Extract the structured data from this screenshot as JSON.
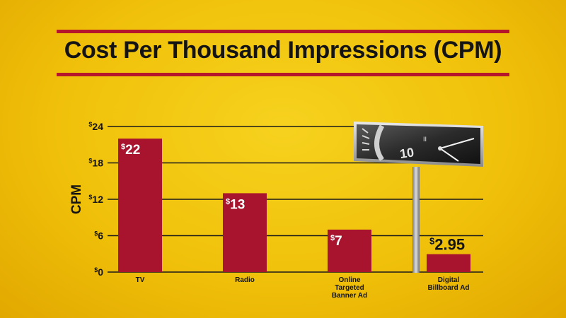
{
  "chart_data": {
    "type": "bar",
    "title": "Cost Per Thousand Impressions (CPM)",
    "ylabel": "CPM",
    "xlabel": "",
    "categories": [
      "TV",
      "Radio",
      "Online Targeted Banner Ad",
      "Digital Billboard Ad"
    ],
    "category_lines": [
      [
        "TV"
      ],
      [
        "Radio"
      ],
      [
        "Online",
        "Targeted",
        "Banner Ad"
      ],
      [
        "Digital",
        "Billboard Ad"
      ]
    ],
    "values": [
      22,
      13,
      7,
      2.95
    ],
    "value_labels": [
      "22",
      "13",
      "7",
      "2.95"
    ],
    "currency_symbol": "$",
    "yticks": [
      0,
      6,
      12,
      18,
      24
    ],
    "ytick_labels": [
      "0",
      "6",
      "12",
      "18",
      "24"
    ],
    "ylim": [
      0,
      24
    ],
    "grid": true,
    "legend": "none"
  },
  "colors": {
    "bar": "#a8142e",
    "title_rule": "#b5162c",
    "text": "#141414",
    "gridline": "#1a1a1a",
    "value_label_inside": "#ffffff",
    "value_label_outside": "#141414"
  },
  "decoration": {
    "billboard": "billboard-icon"
  }
}
